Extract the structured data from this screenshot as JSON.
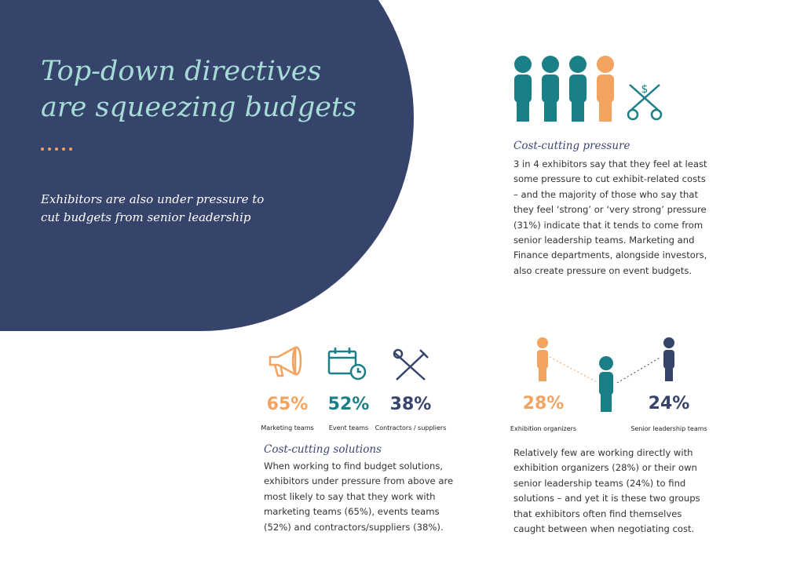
{
  "header": {
    "title": [
      "Top-down directives",
      "are squeezing budgets"
    ],
    "subtitle": [
      "Exhibitors are also under pressure to",
      "cut budgets from senior leadership"
    ]
  },
  "pressure": {
    "heading": "Cost-cutting pressure",
    "body": [
      "3 in 4 exhibitors say that they feel at least",
      "some pressure to cut exhibit-related costs",
      "– and the majority of those who say that",
      "they feel ‘strong’ or ‘very strong’ pressure",
      "(31%) indicate that it tends to come from",
      "senior leadership teams. Marketing and",
      "Finance departments, alongside investors,",
      "also create pressure on event budgets."
    ]
  },
  "solutions": {
    "stats": [
      {
        "value": "65%",
        "label": "Marketing teams"
      },
      {
        "value": "52%",
        "label": "Event teams"
      },
      {
        "value": "38%",
        "label": "Contractors / suppliers"
      }
    ],
    "heading": "Cost-cutting solutions",
    "body": [
      "When working to find budget solutions,",
      "exhibitors under pressure from above are",
      "most likely to say that they work with",
      "marketing teams (65%), events teams",
      "(52%) and contractors/suppliers (38%)."
    ]
  },
  "groups": {
    "stats": [
      {
        "value": "28%",
        "label": "Exhibition organizers"
      },
      {
        "value": "24%",
        "label": "Senior leadership teams"
      }
    ],
    "body": [
      "Relatively few are working directly with",
      "exhibition organizers (28%) or their own",
      "senior leadership teams (24%) to find",
      "solutions – and yet it is these two groups",
      "that exhibitors often find themselves",
      "caught between when negotiating cost."
    ]
  }
}
